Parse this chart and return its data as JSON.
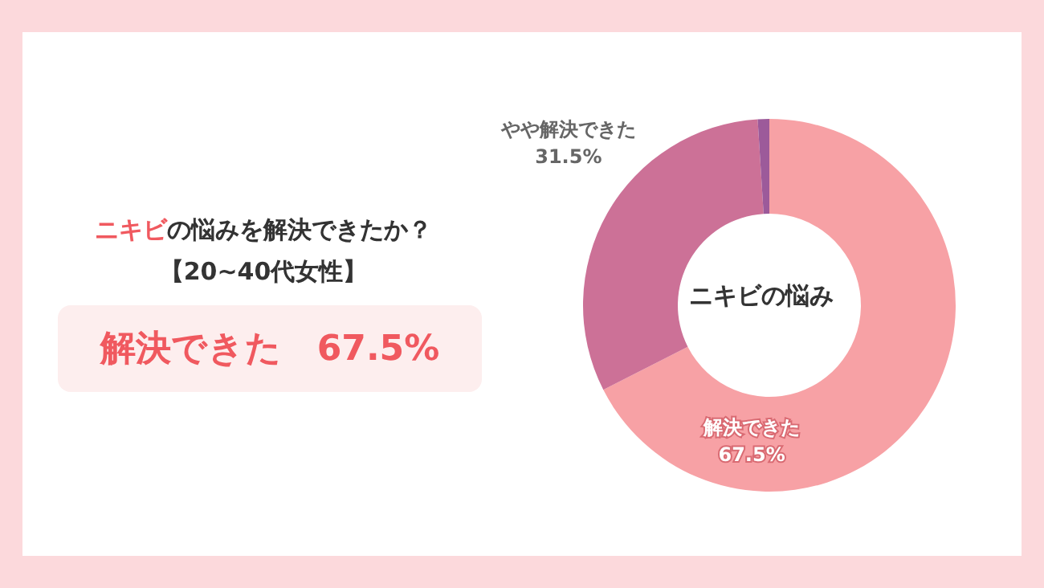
{
  "chart_data": {
    "type": "donut",
    "title": "ニキビの悩みを解決できたか？",
    "subtitle": "【20~40代女性】",
    "categories": [
      "解決できた",
      "やや解決できた",
      null
    ],
    "values": [
      67.5,
      31.5,
      1
    ],
    "value_labels": [
      "67.5%",
      "31.5%",
      null
    ],
    "colors": [
      "#f7a1a5",
      "#cc7197",
      "#9c5a9a"
    ],
    "annotations": [
      "解決できた　67.5%",
      "ニキビの悩み"
    ]
  }
}
